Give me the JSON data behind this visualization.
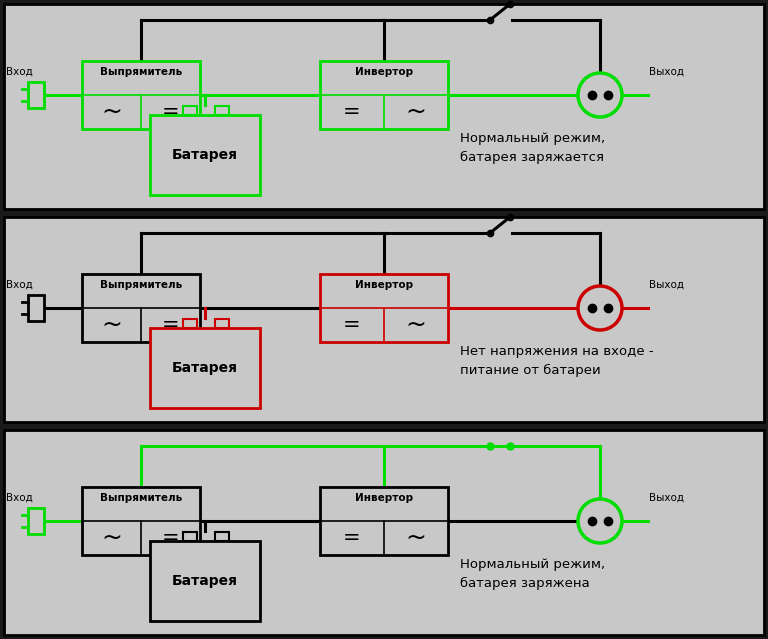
{
  "bg_color": "#1a1a1a",
  "panel_bg": "#c8c8c8",
  "green": "#00dd00",
  "red": "#cc0000",
  "black": "#000000",
  "panels": [
    {
      "label": "Нормальный режим,\nбатарея заряжается",
      "active_color": "#00dd00",
      "rectifier_border": "#00dd00",
      "inverter_border": "#00dd00",
      "battery_border": "#00dd00",
      "outlet_border": "#00dd00",
      "plug_border": "#00dd00",
      "wire_input": "#00dd00",
      "wire_rect_inv": "#00dd00",
      "wire_inv_out": "#00dd00",
      "wire_bat": "#00dd00",
      "wire_bypass_top": "#000000",
      "wire_switch_to_outlet": "#00dd00",
      "switch_open": true,
      "switch_color": "#000000",
      "bypass_green": false
    },
    {
      "label": "Нет напряжения на входе -\nпитание от батареи",
      "active_color": "#cc0000",
      "rectifier_border": "#000000",
      "inverter_border": "#cc0000",
      "battery_border": "#cc0000",
      "outlet_border": "#cc0000",
      "plug_border": "#000000",
      "wire_input": "#000000",
      "wire_rect_inv": "#000000",
      "wire_inv_out": "#cc0000",
      "wire_bat": "#cc0000",
      "wire_bypass_top": "#000000",
      "wire_switch_to_outlet": "#cc0000",
      "switch_open": true,
      "switch_color": "#000000",
      "bypass_green": false
    },
    {
      "label": "Нормальный режим,\nбатарея заряжена",
      "active_color": "#00dd00",
      "rectifier_border": "#000000",
      "inverter_border": "#000000",
      "battery_border": "#000000",
      "outlet_border": "#00dd00",
      "plug_border": "#00dd00",
      "wire_input": "#00dd00",
      "wire_rect_inv": "#000000",
      "wire_inv_out": "#000000",
      "wire_bat": "#000000",
      "wire_bypass_top": "#00dd00",
      "wire_switch_to_outlet": "#00dd00",
      "switch_open": false,
      "switch_color": "#00dd00",
      "bypass_green": true
    }
  ]
}
